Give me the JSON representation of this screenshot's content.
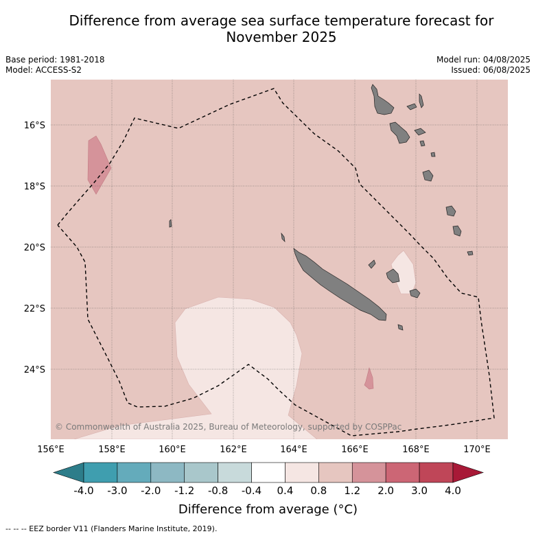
{
  "title": "Difference from average sea surface temperature forecast for November 2025",
  "title_line1": "Difference from average sea surface temperature forecast for",
  "title_line2": "November 2025",
  "base_period": "Base period: 1981-2018",
  "model": "Model: ACCESS-S2",
  "model_run": "Model run: 04/08/2025",
  "issued": "Issued: 06/08/2025",
  "map": {
    "lon_ticks": [
      "156°E",
      "158°E",
      "160°E",
      "162°E",
      "164°E",
      "166°E",
      "168°E",
      "170°E"
    ],
    "lat_ticks": [
      "16°S",
      "18°S",
      "20°S",
      "22°S",
      "24°S"
    ],
    "copyright": "© Commonwealth of Australia 2025, Bureau of Meteorology, supported by COSPPac",
    "background_color": "#e6c6c0",
    "land_color": "#808080"
  },
  "colorbar": {
    "ticks": [
      "-4.0",
      "-3.0",
      "-2.0",
      "-1.2",
      "-0.8",
      "-0.4",
      "0.4",
      "0.8",
      "1.2",
      "2.0",
      "3.0",
      "4.0"
    ],
    "colors": [
      "#3f9eaf",
      "#64abbb",
      "#8db8c3",
      "#a9c7cb",
      "#c8dadb",
      "#ffffff",
      "#f5e6e3",
      "#e6c6c0",
      "#d5939a",
      "#cc6675",
      "#bf4658"
    ],
    "under_color": "#2d7d8a",
    "over_color": "#a81937",
    "label": "Difference from average (°C)"
  },
  "footer": "--  --  -- EEZ border V11 (Flanders Marine Institute, 2019)."
}
